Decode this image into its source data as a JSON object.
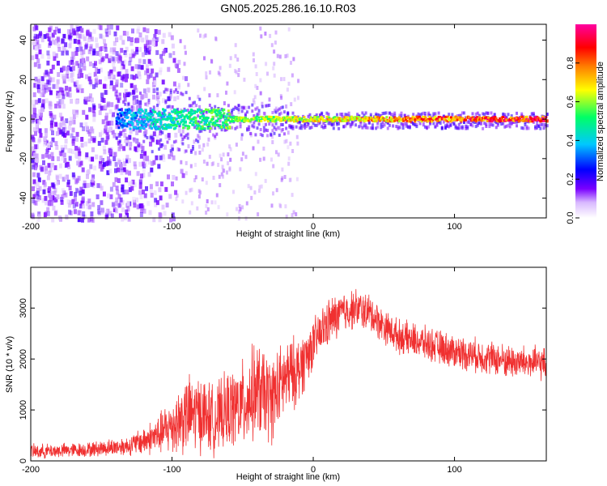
{
  "chart_data": [
    {
      "type": "heatmap",
      "title": "GN05.2025.286.16.10.R03",
      "xlabel": "Height of straight line (km)",
      "ylabel": "Frequency (Hz)",
      "xlim": [
        -200,
        165
      ],
      "ylim": [
        -50,
        48
      ],
      "x_ticks": [
        "-200",
        "-100",
        "0",
        "100"
      ],
      "y_ticks": [
        "40",
        "20",
        "0",
        "-20",
        "-40"
      ],
      "colorbar": {
        "label": "Normalized spectral amplitude",
        "range": [
          0,
          1
        ],
        "ticks": [
          "0.0",
          "0.2",
          "0.4",
          "0.6",
          "0.8"
        ],
        "colors": [
          "#ffffff",
          "#7a00ff",
          "#0000ff",
          "#00c8ff",
          "#00ff66",
          "#ffff00",
          "#ff8000",
          "#ff0000",
          "#ff00a0"
        ]
      },
      "features": [
        {
          "name": "line",
          "x_start": -140,
          "x_end": 165,
          "frequency_hz": 0,
          "amplitude_start": 0.3,
          "amplitude_end": 0.95
        },
        {
          "name": "noise",
          "x_start": -200,
          "x_end": -100,
          "amplitude": 0.15
        }
      ]
    },
    {
      "type": "line",
      "title": "",
      "xlabel": "Height of straight line (km)",
      "ylabel": "SNR (10 * v/v)",
      "xlim": [
        -200,
        165
      ],
      "ylim": [
        0,
        3800
      ],
      "x_ticks": [
        "-200",
        "-100",
        "0",
        "100"
      ],
      "y_ticks": [
        "3000",
        "2000",
        "1000",
        "0"
      ],
      "color": "#f03030",
      "envelope": {
        "x": [
          -200,
          -160,
          -130,
          -110,
          -100,
          -90,
          -80,
          -70,
          -60,
          -50,
          -40,
          -30,
          -20,
          -10,
          0,
          10,
          20,
          30,
          40,
          50,
          60,
          80,
          100,
          120,
          140,
          165
        ],
        "y_mean": [
          180,
          220,
          300,
          500,
          700,
          900,
          950,
          800,
          1000,
          1100,
          1400,
          1200,
          1600,
          1800,
          2300,
          2700,
          2900,
          3000,
          2900,
          2650,
          2450,
          2300,
          2150,
          2050,
          1950,
          1900
        ],
        "y_spread": [
          150,
          150,
          200,
          400,
          600,
          800,
          800,
          700,
          800,
          900,
          1000,
          900,
          800,
          700,
          500,
          500,
          450,
          400,
          400,
          350,
          350,
          350,
          350,
          350,
          350,
          350
        ]
      }
    }
  ]
}
